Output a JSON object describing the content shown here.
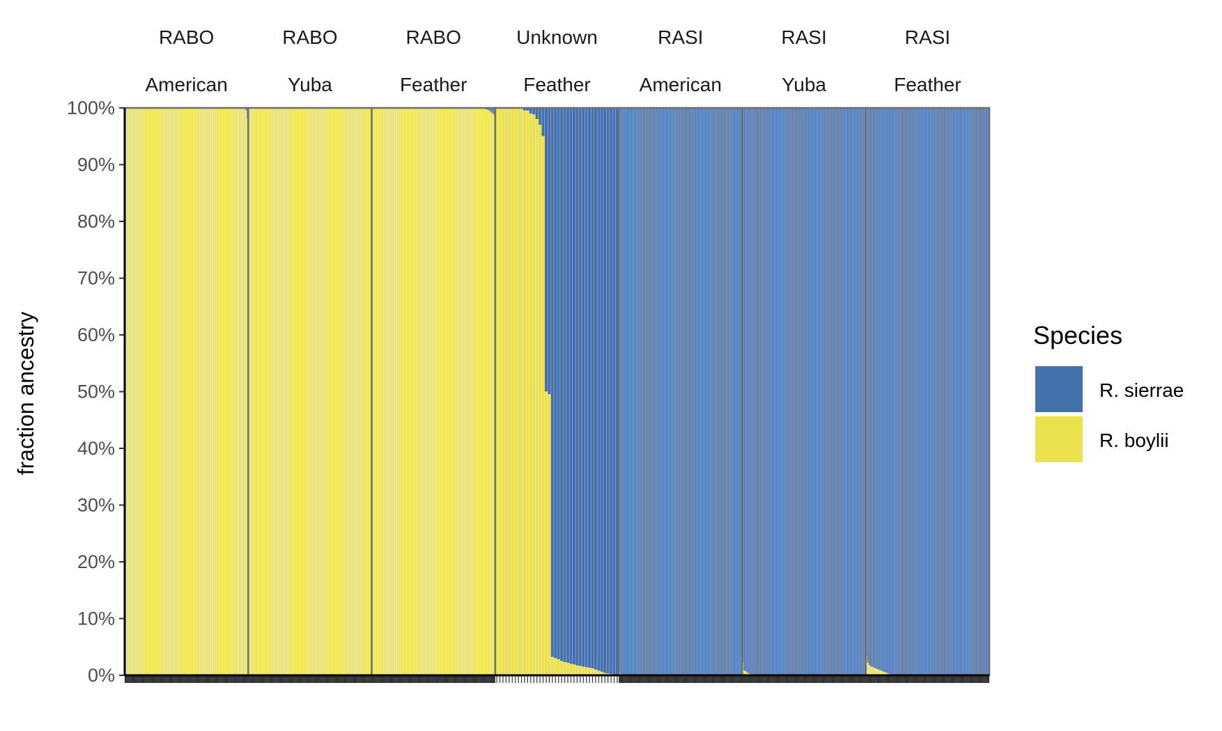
{
  "chart_data": {
    "type": "bar",
    "stacked": true,
    "ylabel": "fraction ancestry",
    "ylim": [
      0,
      1
    ],
    "yticks": [
      "0%",
      "10%",
      "20%",
      "30%",
      "40%",
      "50%",
      "60%",
      "70%",
      "80%",
      "90%",
      "100%"
    ],
    "legend": {
      "title": "Species",
      "position": "right",
      "entries": [
        {
          "label": "R. sierrae",
          "color": "#4470AD"
        },
        {
          "label": "R. boylii",
          "color": "#EBE252"
        }
      ]
    },
    "panels": [
      {
        "species": "RABO",
        "river": "American",
        "n": 92,
        "sierrae_values": [
          0,
          0,
          0,
          0,
          0,
          0,
          0,
          0,
          0,
          0,
          0,
          0,
          0,
          0,
          0,
          0,
          0,
          0,
          0,
          0,
          0,
          0,
          0,
          0,
          0,
          0,
          0,
          0,
          0,
          0,
          0,
          0,
          0,
          0,
          0,
          0,
          0,
          0,
          0,
          0,
          0,
          0,
          0,
          0,
          0,
          0,
          0,
          0,
          0,
          0,
          0,
          0,
          0,
          0,
          0,
          0,
          0,
          0,
          0,
          0,
          0,
          0,
          0,
          0,
          0,
          0,
          0,
          0,
          0,
          0,
          0,
          0,
          0,
          0,
          0,
          0,
          0,
          0,
          0,
          0,
          0,
          0,
          0,
          0,
          0,
          0,
          0,
          0,
          0,
          0,
          0.005,
          0.02
        ]
      },
      {
        "species": "RABO",
        "river": "Yuba",
        "n": 92,
        "sierrae_values": [
          0,
          0,
          0,
          0,
          0,
          0,
          0,
          0,
          0,
          0,
          0,
          0,
          0,
          0,
          0,
          0,
          0,
          0,
          0,
          0,
          0,
          0,
          0,
          0,
          0,
          0,
          0,
          0,
          0,
          0,
          0,
          0,
          0,
          0,
          0,
          0,
          0,
          0,
          0,
          0,
          0,
          0,
          0,
          0,
          0,
          0,
          0,
          0,
          0,
          0,
          0,
          0,
          0,
          0,
          0,
          0,
          0,
          0,
          0,
          0,
          0,
          0,
          0,
          0,
          0,
          0,
          0,
          0,
          0,
          0,
          0,
          0,
          0,
          0,
          0,
          0,
          0,
          0,
          0,
          0,
          0,
          0,
          0,
          0,
          0,
          0,
          0,
          0,
          0,
          0,
          0,
          0
        ]
      },
      {
        "species": "RABO",
        "river": "Feather",
        "n": 92,
        "sierrae_values": [
          0,
          0,
          0,
          0,
          0,
          0,
          0,
          0,
          0,
          0,
          0,
          0,
          0,
          0,
          0,
          0,
          0,
          0,
          0,
          0,
          0,
          0,
          0,
          0,
          0,
          0,
          0,
          0,
          0,
          0,
          0,
          0,
          0,
          0,
          0,
          0,
          0,
          0,
          0,
          0,
          0,
          0,
          0,
          0,
          0,
          0,
          0,
          0,
          0,
          0,
          0,
          0,
          0,
          0,
          0,
          0,
          0,
          0,
          0,
          0,
          0,
          0,
          0,
          0,
          0,
          0,
          0,
          0,
          0,
          0,
          0,
          0,
          0,
          0,
          0,
          0,
          0,
          0,
          0,
          0,
          0,
          0,
          0,
          0.001,
          0.002,
          0.003,
          0.004,
          0.005,
          0.007,
          0.009,
          0.011,
          0.013
        ]
      },
      {
        "species": "Unknown",
        "river": "Feather",
        "n": 40,
        "sierrae_values": [
          0,
          0,
          0,
          0,
          0,
          0,
          0,
          0,
          0,
          0.005,
          0.005,
          0.01,
          0.012,
          0.02,
          0.03,
          0.05,
          0.5,
          0.505,
          0.968,
          0.97,
          0.972,
          0.975,
          0.977,
          0.978,
          0.98,
          0.981,
          0.983,
          0.984,
          0.985,
          0.986,
          0.987,
          0.988,
          0.99,
          0.992,
          0.994,
          0.996,
          0.997,
          0.998,
          0.999,
          1
        ]
      },
      {
        "species": "RASI",
        "river": "American",
        "n": 92,
        "sierrae_values": [
          0.995,
          0.998,
          1,
          1,
          1,
          1,
          1,
          1,
          1,
          1,
          1,
          1,
          1,
          1,
          1,
          1,
          1,
          1,
          1,
          1,
          1,
          1,
          1,
          1,
          1,
          1,
          1,
          1,
          1,
          1,
          1,
          1,
          1,
          1,
          1,
          1,
          1,
          1,
          1,
          1,
          1,
          1,
          1,
          1,
          1,
          1,
          1,
          1,
          1,
          1,
          1,
          1,
          1,
          1,
          1,
          1,
          1,
          1,
          1,
          1,
          1,
          1,
          1,
          1,
          1,
          1,
          1,
          1,
          1,
          1,
          1,
          1,
          1,
          1,
          1,
          1,
          1,
          1,
          1,
          1,
          1,
          1,
          1,
          1,
          1,
          1,
          1,
          1,
          1,
          1,
          1,
          1
        ]
      },
      {
        "species": "RASI",
        "river": "Yuba",
        "n": 92,
        "sierrae_values": [
          0.978,
          0.992,
          0.993,
          0.995,
          0.997,
          0.998,
          1,
          1,
          1,
          1,
          1,
          1,
          1,
          1,
          1,
          1,
          1,
          1,
          1,
          1,
          1,
          1,
          1,
          1,
          1,
          1,
          1,
          1,
          1,
          1,
          1,
          1,
          1,
          1,
          1,
          1,
          1,
          1,
          1,
          1,
          1,
          1,
          1,
          1,
          1,
          1,
          1,
          1,
          1,
          1,
          1,
          1,
          1,
          1,
          1,
          1,
          1,
          1,
          1,
          1,
          1,
          1,
          1,
          1,
          1,
          1,
          1,
          1,
          1,
          1,
          1,
          1,
          1,
          1,
          1,
          1,
          1,
          1,
          1,
          1,
          1,
          1,
          1,
          1,
          1,
          1,
          1,
          1,
          1,
          1,
          1,
          1
        ]
      },
      {
        "species": "RASI",
        "river": "Feather",
        "n": 92,
        "sierrae_values": [
          0.967,
          0.978,
          0.982,
          0.984,
          0.985,
          0.986,
          0.987,
          0.988,
          0.989,
          0.99,
          0.991,
          0.992,
          0.993,
          0.994,
          0.995,
          0.996,
          0.997,
          0.998,
          0.999,
          1,
          1,
          1,
          1,
          1,
          1,
          1,
          1,
          1,
          1,
          1,
          1,
          1,
          1,
          1,
          1,
          1,
          1,
          1,
          1,
          1,
          1,
          1,
          1,
          1,
          1,
          1,
          1,
          1,
          1,
          1,
          1,
          1,
          1,
          1,
          1,
          1,
          1,
          1,
          1,
          1,
          1,
          1,
          1,
          1,
          1,
          1,
          1,
          1,
          1,
          1,
          1,
          1,
          1,
          1,
          1,
          1,
          1,
          1,
          1,
          1,
          1,
          1,
          1,
          1,
          1,
          1,
          1,
          1,
          1,
          1,
          1,
          1
        ]
      }
    ]
  }
}
